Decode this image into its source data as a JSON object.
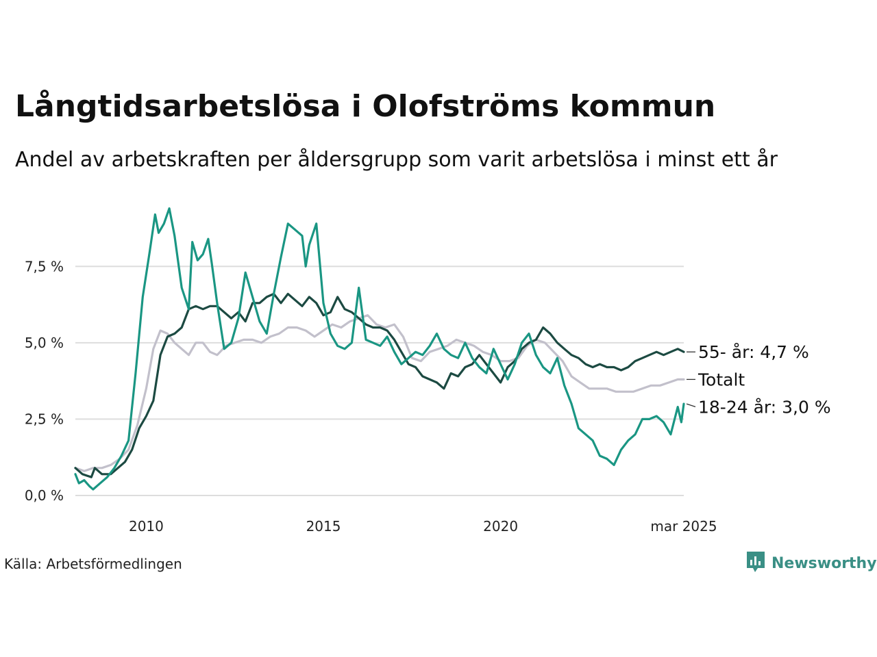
{
  "header": {
    "title": "Långtidsarbetslösa i Olofströms kommun",
    "subtitle": "Andel av arbetskraften per åldersgrupp som varit arbetslösa i minst ett år"
  },
  "footer": {
    "source": "Källa: Arbetsförmedlingen",
    "brand": "Newsworthy",
    "brand_color": "#3a8f85"
  },
  "chart_data": {
    "type": "line",
    "title": "Långtidsarbetslösa i Olofströms kommun",
    "subtitle": "Andel av arbetskraften per åldersgrupp som varit arbetslösa i minst ett år",
    "xlabel": "",
    "ylabel": "",
    "x_range": [
      2008.0,
      2025.17
    ],
    "ylim": [
      0,
      9.5
    ],
    "grid": "horizontal",
    "x_ticks": [
      {
        "value": 2010,
        "label": "2010"
      },
      {
        "value": 2015,
        "label": "2015"
      },
      {
        "value": 2020,
        "label": "2020"
      },
      {
        "value": 2025.17,
        "label": "mar 2025"
      }
    ],
    "y_ticks": [
      {
        "value": 0,
        "label": "0,0 %"
      },
      {
        "value": 2.5,
        "label": "2,5 %"
      },
      {
        "value": 5.0,
        "label": "5,0 %"
      },
      {
        "value": 7.5,
        "label": "7,5 %"
      }
    ],
    "series": [
      {
        "name": "Totalt",
        "end_label": "Totalt",
        "color": "#c2c0cb",
        "points": [
          [
            2008.0,
            0.9
          ],
          [
            2008.25,
            0.8
          ],
          [
            2008.5,
            0.9
          ],
          [
            2008.75,
            0.9
          ],
          [
            2009.0,
            1.0
          ],
          [
            2009.25,
            1.2
          ],
          [
            2009.5,
            1.5
          ],
          [
            2009.75,
            2.3
          ],
          [
            2010.0,
            3.5
          ],
          [
            2010.2,
            4.8
          ],
          [
            2010.4,
            5.4
          ],
          [
            2010.6,
            5.3
          ],
          [
            2010.8,
            5.0
          ],
          [
            2011.0,
            4.8
          ],
          [
            2011.2,
            4.6
          ],
          [
            2011.4,
            5.0
          ],
          [
            2011.6,
            5.0
          ],
          [
            2011.8,
            4.7
          ],
          [
            2012.0,
            4.6
          ],
          [
            2012.25,
            4.9
          ],
          [
            2012.5,
            5.0
          ],
          [
            2012.75,
            5.1
          ],
          [
            2013.0,
            5.1
          ],
          [
            2013.25,
            5.0
          ],
          [
            2013.5,
            5.2
          ],
          [
            2013.75,
            5.3
          ],
          [
            2014.0,
            5.5
          ],
          [
            2014.25,
            5.5
          ],
          [
            2014.5,
            5.4
          ],
          [
            2014.75,
            5.2
          ],
          [
            2015.0,
            5.4
          ],
          [
            2015.25,
            5.6
          ],
          [
            2015.5,
            5.5
          ],
          [
            2015.75,
            5.7
          ],
          [
            2016.0,
            5.8
          ],
          [
            2016.25,
            5.9
          ],
          [
            2016.5,
            5.6
          ],
          [
            2016.75,
            5.5
          ],
          [
            2017.0,
            5.6
          ],
          [
            2017.25,
            5.2
          ],
          [
            2017.5,
            4.5
          ],
          [
            2017.75,
            4.4
          ],
          [
            2018.0,
            4.7
          ],
          [
            2018.25,
            4.8
          ],
          [
            2018.5,
            4.9
          ],
          [
            2018.75,
            5.1
          ],
          [
            2019.0,
            5.0
          ],
          [
            2019.25,
            4.9
          ],
          [
            2019.5,
            4.7
          ],
          [
            2019.75,
            4.6
          ],
          [
            2020.0,
            4.4
          ],
          [
            2020.25,
            4.4
          ],
          [
            2020.5,
            4.5
          ],
          [
            2020.75,
            4.9
          ],
          [
            2021.0,
            5.1
          ],
          [
            2021.25,
            5.0
          ],
          [
            2021.5,
            4.7
          ],
          [
            2021.75,
            4.4
          ],
          [
            2022.0,
            3.9
          ],
          [
            2022.25,
            3.7
          ],
          [
            2022.5,
            3.5
          ],
          [
            2022.75,
            3.5
          ],
          [
            2023.0,
            3.5
          ],
          [
            2023.25,
            3.4
          ],
          [
            2023.5,
            3.4
          ],
          [
            2023.75,
            3.4
          ],
          [
            2024.0,
            3.5
          ],
          [
            2024.25,
            3.6
          ],
          [
            2024.5,
            3.6
          ],
          [
            2024.75,
            3.7
          ],
          [
            2025.0,
            3.8
          ],
          [
            2025.17,
            3.8
          ]
        ]
      },
      {
        "name": "55- år",
        "end_label": "55- år: 4,7 %",
        "color": "#1c4a42",
        "points": [
          [
            2008.0,
            0.9
          ],
          [
            2008.2,
            0.7
          ],
          [
            2008.45,
            0.6
          ],
          [
            2008.55,
            0.9
          ],
          [
            2008.75,
            0.7
          ],
          [
            2009.0,
            0.7
          ],
          [
            2009.2,
            0.9
          ],
          [
            2009.4,
            1.1
          ],
          [
            2009.6,
            1.5
          ],
          [
            2009.8,
            2.2
          ],
          [
            2010.0,
            2.6
          ],
          [
            2010.2,
            3.1
          ],
          [
            2010.4,
            4.6
          ],
          [
            2010.6,
            5.2
          ],
          [
            2010.8,
            5.3
          ],
          [
            2011.0,
            5.5
          ],
          [
            2011.2,
            6.1
          ],
          [
            2011.4,
            6.2
          ],
          [
            2011.6,
            6.1
          ],
          [
            2011.8,
            6.2
          ],
          [
            2012.0,
            6.2
          ],
          [
            2012.2,
            6.0
          ],
          [
            2012.4,
            5.8
          ],
          [
            2012.6,
            6.0
          ],
          [
            2012.8,
            5.7
          ],
          [
            2013.0,
            6.3
          ],
          [
            2013.2,
            6.3
          ],
          [
            2013.4,
            6.5
          ],
          [
            2013.6,
            6.6
          ],
          [
            2013.8,
            6.3
          ],
          [
            2014.0,
            6.6
          ],
          [
            2014.2,
            6.4
          ],
          [
            2014.4,
            6.2
          ],
          [
            2014.6,
            6.5
          ],
          [
            2014.8,
            6.3
          ],
          [
            2015.0,
            5.9
          ],
          [
            2015.2,
            6.0
          ],
          [
            2015.4,
            6.5
          ],
          [
            2015.6,
            6.1
          ],
          [
            2015.8,
            6.0
          ],
          [
            2016.0,
            5.8
          ],
          [
            2016.2,
            5.6
          ],
          [
            2016.4,
            5.5
          ],
          [
            2016.6,
            5.5
          ],
          [
            2016.8,
            5.4
          ],
          [
            2017.0,
            5.1
          ],
          [
            2017.2,
            4.7
          ],
          [
            2017.4,
            4.3
          ],
          [
            2017.6,
            4.2
          ],
          [
            2017.8,
            3.9
          ],
          [
            2018.0,
            3.8
          ],
          [
            2018.2,
            3.7
          ],
          [
            2018.4,
            3.5
          ],
          [
            2018.6,
            4.0
          ],
          [
            2018.8,
            3.9
          ],
          [
            2019.0,
            4.2
          ],
          [
            2019.2,
            4.3
          ],
          [
            2019.4,
            4.6
          ],
          [
            2019.6,
            4.3
          ],
          [
            2019.8,
            4.0
          ],
          [
            2020.0,
            3.7
          ],
          [
            2020.2,
            4.2
          ],
          [
            2020.4,
            4.4
          ],
          [
            2020.6,
            4.8
          ],
          [
            2020.8,
            5.0
          ],
          [
            2021.0,
            5.1
          ],
          [
            2021.2,
            5.5
          ],
          [
            2021.4,
            5.3
          ],
          [
            2021.6,
            5.0
          ],
          [
            2021.8,
            4.8
          ],
          [
            2022.0,
            4.6
          ],
          [
            2022.2,
            4.5
          ],
          [
            2022.4,
            4.3
          ],
          [
            2022.6,
            4.2
          ],
          [
            2022.8,
            4.3
          ],
          [
            2023.0,
            4.2
          ],
          [
            2023.2,
            4.2
          ],
          [
            2023.4,
            4.1
          ],
          [
            2023.6,
            4.2
          ],
          [
            2023.8,
            4.4
          ],
          [
            2024.0,
            4.5
          ],
          [
            2024.2,
            4.6
          ],
          [
            2024.4,
            4.7
          ],
          [
            2024.6,
            4.6
          ],
          [
            2024.8,
            4.7
          ],
          [
            2025.0,
            4.8
          ],
          [
            2025.17,
            4.7
          ]
        ]
      },
      {
        "name": "18-24 år",
        "end_label": "18-24 år: 3,0 %",
        "color": "#1a9683",
        "points": [
          [
            2008.0,
            0.7
          ],
          [
            2008.1,
            0.4
          ],
          [
            2008.25,
            0.5
          ],
          [
            2008.4,
            0.3
          ],
          [
            2008.5,
            0.2
          ],
          [
            2008.7,
            0.4
          ],
          [
            2008.9,
            0.6
          ],
          [
            2009.1,
            0.9
          ],
          [
            2009.3,
            1.3
          ],
          [
            2009.5,
            1.8
          ],
          [
            2009.7,
            4.0
          ],
          [
            2009.9,
            6.5
          ],
          [
            2010.1,
            8.0
          ],
          [
            2010.25,
            9.2
          ],
          [
            2010.35,
            8.6
          ],
          [
            2010.5,
            8.9
          ],
          [
            2010.65,
            9.4
          ],
          [
            2010.8,
            8.5
          ],
          [
            2011.0,
            6.8
          ],
          [
            2011.2,
            6.1
          ],
          [
            2011.3,
            8.3
          ],
          [
            2011.45,
            7.7
          ],
          [
            2011.6,
            7.9
          ],
          [
            2011.75,
            8.4
          ],
          [
            2011.85,
            7.6
          ],
          [
            2012.0,
            6.3
          ],
          [
            2012.2,
            4.8
          ],
          [
            2012.4,
            5.0
          ],
          [
            2012.6,
            5.8
          ],
          [
            2012.8,
            7.3
          ],
          [
            2013.0,
            6.5
          ],
          [
            2013.2,
            5.7
          ],
          [
            2013.4,
            5.3
          ],
          [
            2013.6,
            6.6
          ],
          [
            2013.8,
            7.8
          ],
          [
            2014.0,
            8.9
          ],
          [
            2014.2,
            8.7
          ],
          [
            2014.4,
            8.5
          ],
          [
            2014.5,
            7.5
          ],
          [
            2014.6,
            8.2
          ],
          [
            2014.8,
            8.9
          ],
          [
            2015.0,
            6.3
          ],
          [
            2015.2,
            5.3
          ],
          [
            2015.4,
            4.9
          ],
          [
            2015.6,
            4.8
          ],
          [
            2015.8,
            5.0
          ],
          [
            2016.0,
            6.8
          ],
          [
            2016.2,
            5.1
          ],
          [
            2016.4,
            5.0
          ],
          [
            2016.6,
            4.9
          ],
          [
            2016.8,
            5.2
          ],
          [
            2017.0,
            4.7
          ],
          [
            2017.2,
            4.3
          ],
          [
            2017.4,
            4.5
          ],
          [
            2017.6,
            4.7
          ],
          [
            2017.8,
            4.6
          ],
          [
            2018.0,
            4.9
          ],
          [
            2018.2,
            5.3
          ],
          [
            2018.4,
            4.8
          ],
          [
            2018.6,
            4.6
          ],
          [
            2018.8,
            4.5
          ],
          [
            2019.0,
            5.0
          ],
          [
            2019.2,
            4.5
          ],
          [
            2019.4,
            4.2
          ],
          [
            2019.6,
            4.0
          ],
          [
            2019.8,
            4.8
          ],
          [
            2020.0,
            4.3
          ],
          [
            2020.2,
            3.8
          ],
          [
            2020.4,
            4.3
          ],
          [
            2020.6,
            5.0
          ],
          [
            2020.8,
            5.3
          ],
          [
            2021.0,
            4.6
          ],
          [
            2021.2,
            4.2
          ],
          [
            2021.4,
            4.0
          ],
          [
            2021.6,
            4.5
          ],
          [
            2021.8,
            3.6
          ],
          [
            2022.0,
            3.0
          ],
          [
            2022.2,
            2.2
          ],
          [
            2022.4,
            2.0
          ],
          [
            2022.6,
            1.8
          ],
          [
            2022.8,
            1.3
          ],
          [
            2023.0,
            1.2
          ],
          [
            2023.2,
            1.0
          ],
          [
            2023.4,
            1.5
          ],
          [
            2023.6,
            1.8
          ],
          [
            2023.8,
            2.0
          ],
          [
            2024.0,
            2.5
          ],
          [
            2024.2,
            2.5
          ],
          [
            2024.4,
            2.6
          ],
          [
            2024.6,
            2.4
          ],
          [
            2024.8,
            2.0
          ],
          [
            2025.0,
            2.9
          ],
          [
            2025.1,
            2.4
          ],
          [
            2025.17,
            3.0
          ]
        ]
      }
    ]
  }
}
